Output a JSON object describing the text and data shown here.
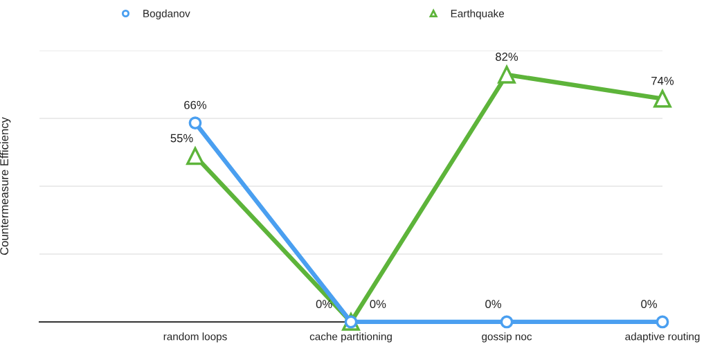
{
  "chart_data": {
    "type": "line",
    "ylabel": "Countermeasure Efficiency",
    "categories": [
      null,
      "random loops",
      "cache partitioning",
      "gossip noc",
      "adaptive routing"
    ],
    "series": [
      {
        "name": "Bogdanov",
        "color": "#4a9ff0",
        "marker": "circle",
        "values": [
          null,
          66,
          0,
          0,
          0
        ],
        "value_labels": [
          null,
          "66%",
          "0%",
          "0%",
          "0%"
        ]
      },
      {
        "name": "Earthquake",
        "color": "#5db43a",
        "marker": "triangle",
        "values": [
          null,
          55,
          0,
          82,
          74
        ],
        "value_labels": [
          null,
          "55%",
          "0%",
          "82%",
          "74%"
        ]
      }
    ],
    "ylim": [
      0,
      90
    ],
    "yticks": [
      {
        "value": 0,
        "label": null
      },
      {
        "value": 22.5,
        "label": null
      },
      {
        "value": 45,
        "label": null
      },
      {
        "value": 67.5,
        "label": null
      },
      {
        "value": 90,
        "label": null
      }
    ],
    "tick_labels": "x",
    "grid": "y",
    "legend": "top",
    "line_style": "solid"
  }
}
